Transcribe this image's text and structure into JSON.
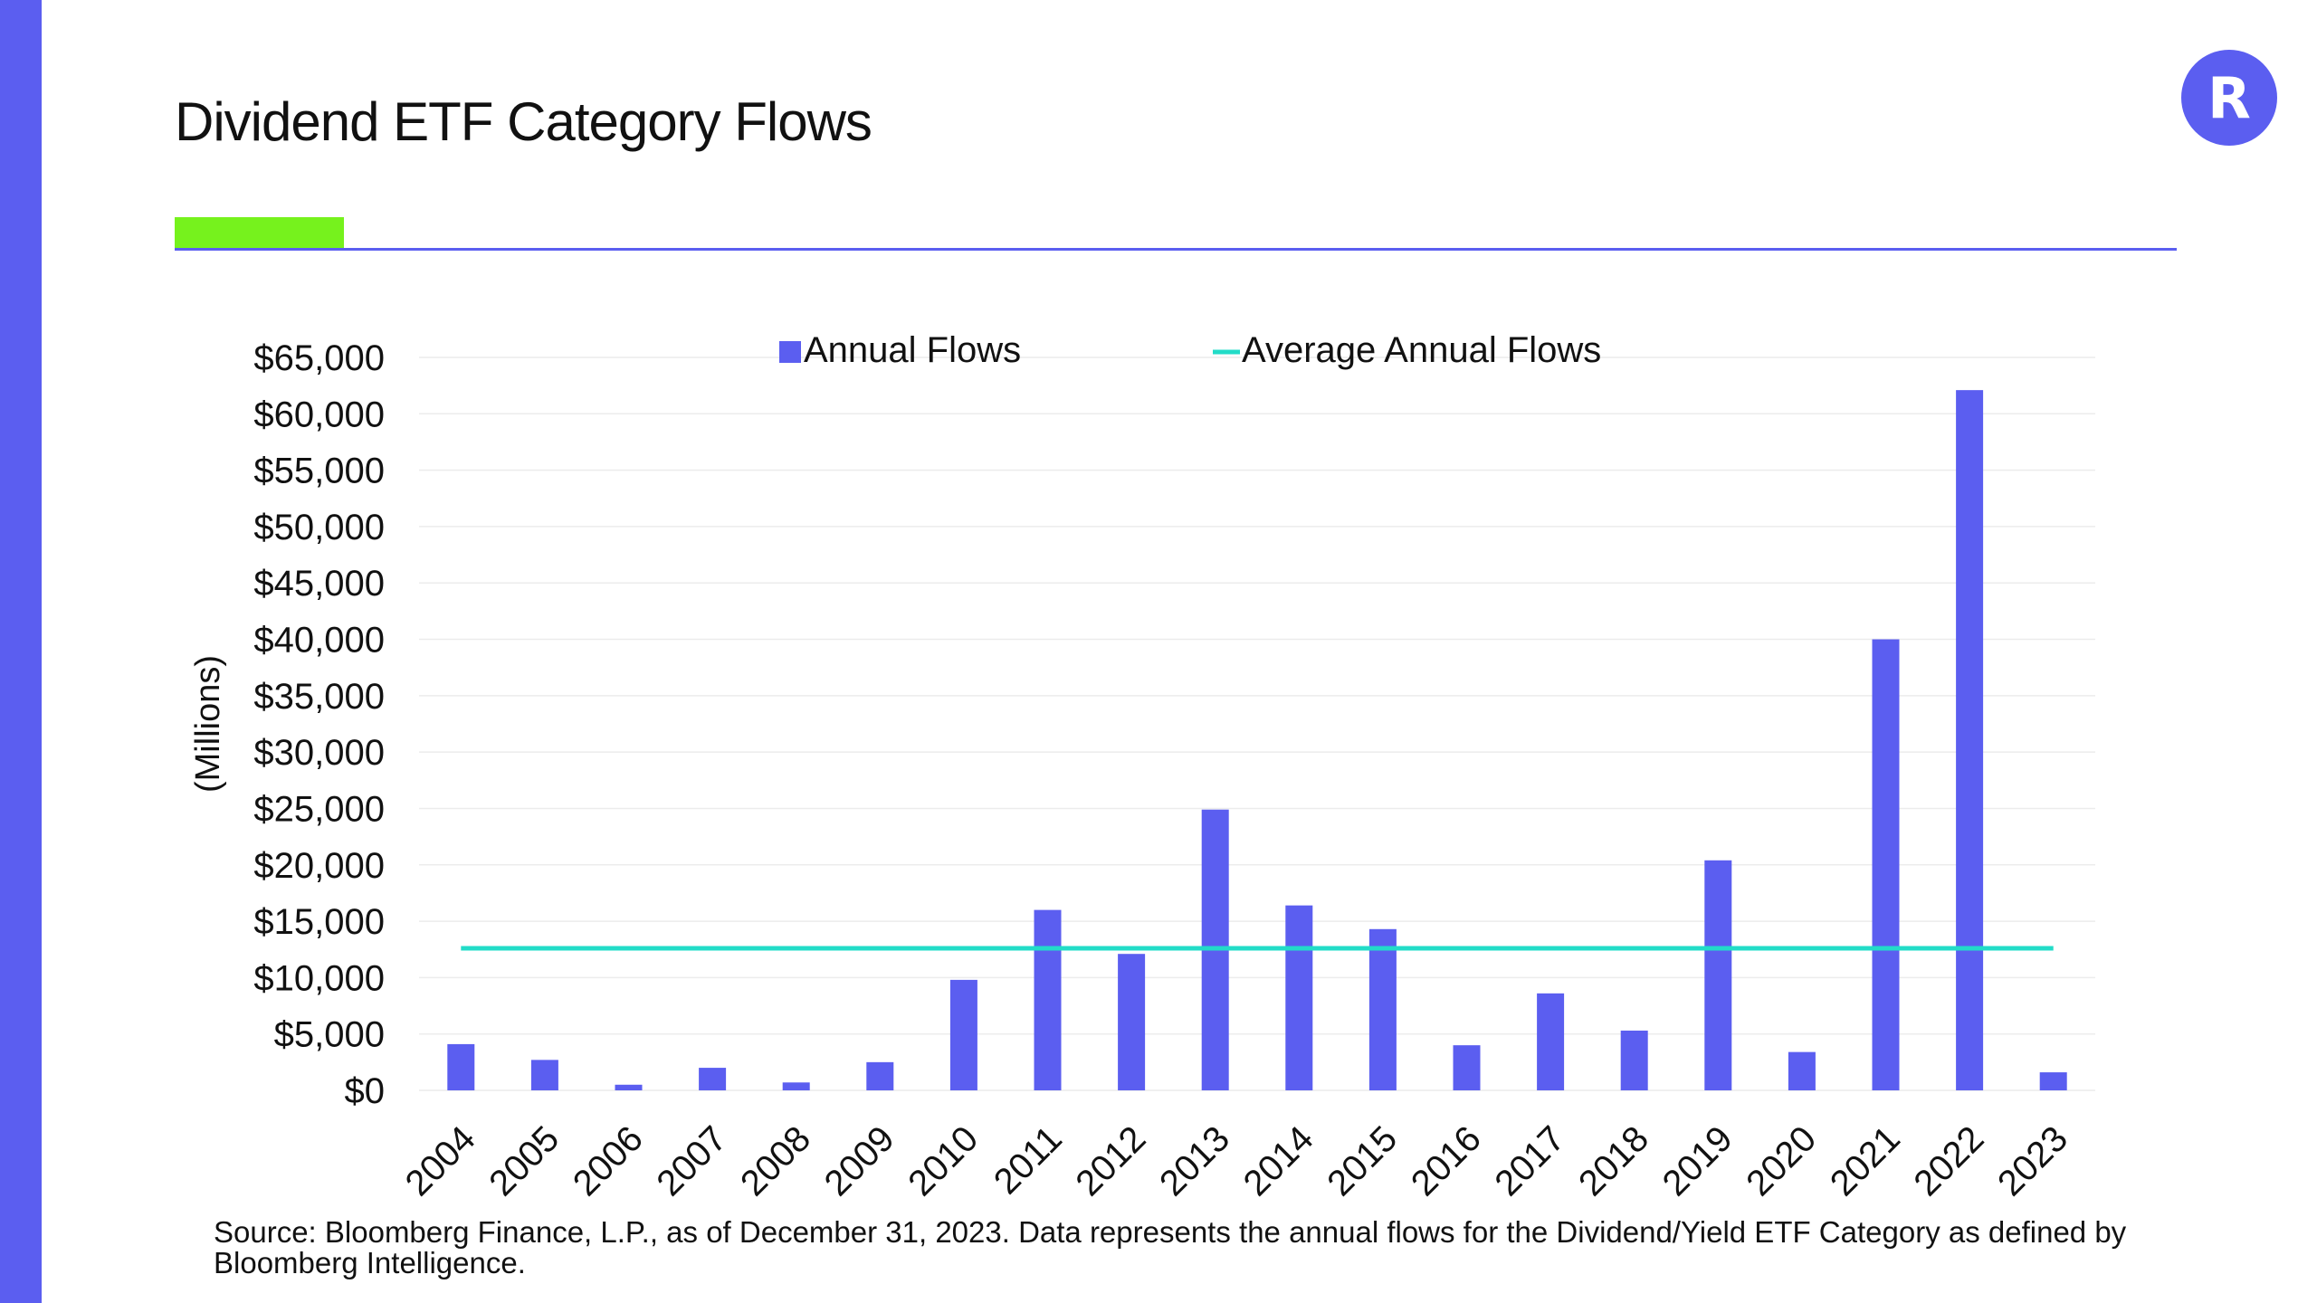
{
  "page": {
    "title": "Dividend ETF Category Flows",
    "logo_letter": "R",
    "source_note": "Source: Bloomberg Finance, L.P., as of December 31, 2023. Data represents the annual flows for the Dividend/Yield ETF Category as defined by Bloomberg Intelligence."
  },
  "colors": {
    "brand": "#5b5ef0",
    "accent_green": "#76f21d",
    "bar": "#5b5ef0",
    "average_line": "#22dcc8",
    "grid": "#ececec"
  },
  "chart_data": {
    "type": "bar",
    "title": "",
    "xlabel": "",
    "ylabel": "(Millions)",
    "ylim": [
      0,
      65000
    ],
    "ytick_values": [
      0,
      5000,
      10000,
      15000,
      20000,
      25000,
      30000,
      35000,
      40000,
      45000,
      50000,
      55000,
      60000,
      65000
    ],
    "ytick_labels": [
      "$0",
      "$5,000",
      "$10,000",
      "$15,000",
      "$20,000",
      "$25,000",
      "$30,000",
      "$35,000",
      "$40,000",
      "$45,000",
      "$50,000",
      "$55,000",
      "$60,000",
      "$65,000"
    ],
    "categories": [
      "2004",
      "2005",
      "2006",
      "2007",
      "2008",
      "2009",
      "2010",
      "2011",
      "2012",
      "2013",
      "2014",
      "2015",
      "2016",
      "2017",
      "2018",
      "2019",
      "2020",
      "2021",
      "2022",
      "2023"
    ],
    "series": [
      {
        "name": "Annual Flows",
        "kind": "bar",
        "values": [
          4100,
          2700,
          500,
          2000,
          700,
          2500,
          9800,
          16000,
          12100,
          24900,
          16400,
          14300,
          4000,
          8600,
          5300,
          20400,
          3400,
          40000,
          62100,
          1600
        ]
      },
      {
        "name": "Average Annual Flows",
        "kind": "line",
        "values": [
          12600,
          12600,
          12600,
          12600,
          12600,
          12600,
          12600,
          12600,
          12600,
          12600,
          12600,
          12600,
          12600,
          12600,
          12600,
          12600,
          12600,
          12600,
          12600,
          12600
        ]
      }
    ],
    "grid": true,
    "legend_position": "top"
  }
}
